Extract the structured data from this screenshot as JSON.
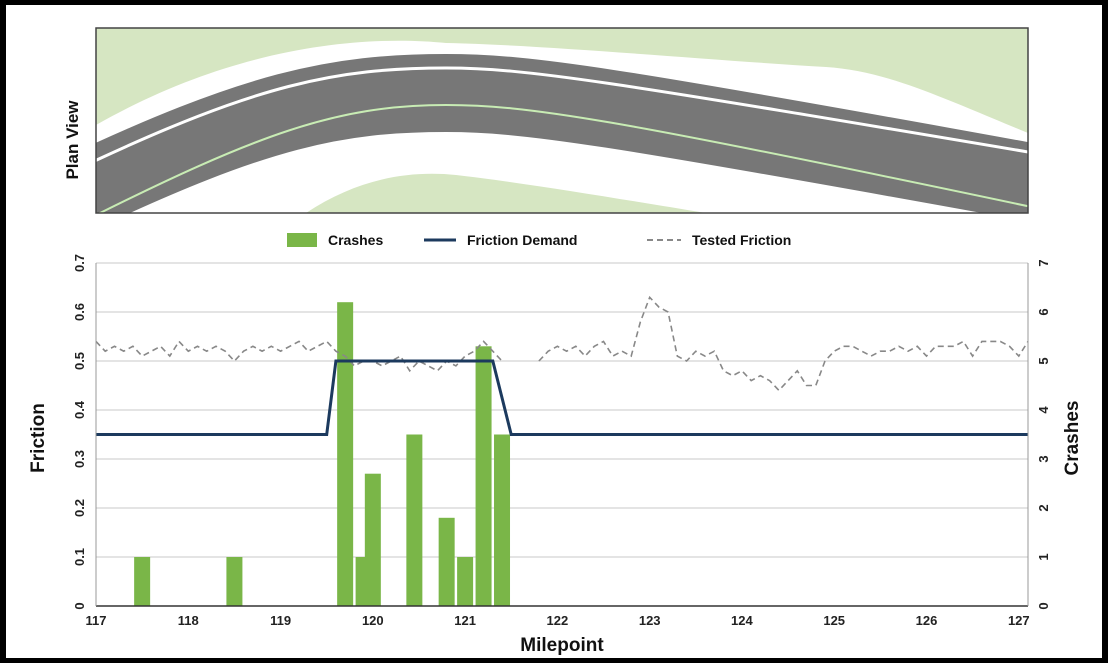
{
  "plan_view": {
    "label": "Plan View"
  },
  "colors": {
    "grass": "#d6e6c2",
    "road": "#777777",
    "bar": "#7ab648",
    "demand": "#1c3a5e",
    "tested": "#888888",
    "grid": "#c8c8c8"
  },
  "chart_data": {
    "type": "bar",
    "xlabel": "Milepoint",
    "ylabel_left": "Friction",
    "ylabel_right": "Crashes",
    "xlim": [
      117,
      127.1
    ],
    "xticks": [
      117,
      118,
      119,
      120,
      121,
      122,
      123,
      124,
      125,
      126,
      127
    ],
    "ylim_left": [
      0,
      0.7
    ],
    "yticks_left": [
      "0",
      "0.1",
      "0.2",
      "0.3",
      "0.4",
      "0.5",
      "0.6",
      "0.7"
    ],
    "ylim_right": [
      0,
      7
    ],
    "yticks_right": [
      "0",
      "1",
      "2",
      "3",
      "4",
      "5",
      "6",
      "7"
    ],
    "grid": true,
    "legend": [
      "Crashes",
      "Friction Demand",
      "Tested Friction"
    ],
    "legend_position": "top-center",
    "crashes": {
      "name": "Crashes",
      "x": [
        117.5,
        118.5,
        119.7,
        119.9,
        120.0,
        120.45,
        120.8,
        121.0,
        121.2,
        121.4
      ],
      "values": [
        1,
        1,
        6.2,
        1,
        2.7,
        3.5,
        1.8,
        1,
        5.3,
        3.5
      ]
    },
    "friction_demand": {
      "name": "Friction Demand",
      "x": [
        117,
        119.5,
        119.6,
        121.3,
        121.5,
        127.1
      ],
      "values": [
        0.35,
        0.35,
        0.5,
        0.5,
        0.35,
        0.35
      ]
    },
    "tested_friction": {
      "name": "Tested Friction",
      "segments": [
        {
          "x": [
            117.0,
            117.1,
            117.2,
            117.3,
            117.4,
            117.5,
            117.6,
            117.7,
            117.8,
            117.9,
            118.0,
            118.1,
            118.2,
            118.3,
            118.4,
            118.5,
            118.6,
            118.7,
            118.8,
            118.9,
            119.0,
            119.1,
            119.2,
            119.3,
            119.4,
            119.5,
            119.6,
            119.7,
            119.8,
            119.9,
            120.0,
            120.1,
            120.2,
            120.3,
            120.4,
            120.5,
            120.6,
            120.7,
            120.8,
            120.9,
            121.0,
            121.1,
            121.2,
            121.3,
            121.4
          ],
          "values": [
            0.54,
            0.52,
            0.53,
            0.52,
            0.53,
            0.51,
            0.52,
            0.53,
            0.51,
            0.54,
            0.52,
            0.53,
            0.52,
            0.53,
            0.52,
            0.5,
            0.52,
            0.53,
            0.52,
            0.53,
            0.52,
            0.53,
            0.54,
            0.52,
            0.53,
            0.54,
            0.52,
            0.51,
            0.49,
            0.5,
            0.5,
            0.49,
            0.5,
            0.51,
            0.48,
            0.5,
            0.49,
            0.48,
            0.5,
            0.49,
            0.51,
            0.52,
            0.54,
            0.52,
            0.5
          ]
        },
        {
          "x": [
            121.8,
            121.9,
            122.0,
            122.1,
            122.2,
            122.3,
            122.4,
            122.5,
            122.6,
            122.7,
            122.8,
            122.9,
            123.0,
            123.1,
            123.2,
            123.3,
            123.4,
            123.5,
            123.6,
            123.7,
            123.8,
            123.9,
            124.0,
            124.1,
            124.2,
            124.3,
            124.4,
            124.5,
            124.6,
            124.7,
            124.8,
            124.9,
            125.0,
            125.1,
            125.2,
            125.3,
            125.4,
            125.5,
            125.6,
            125.7,
            125.8,
            125.9,
            126.0,
            126.1,
            126.2,
            126.3,
            126.4,
            126.5,
            126.6,
            126.7,
            126.8,
            126.9,
            127.0,
            127.1
          ],
          "values": [
            0.5,
            0.52,
            0.53,
            0.52,
            0.53,
            0.51,
            0.53,
            0.54,
            0.51,
            0.52,
            0.51,
            0.58,
            0.63,
            0.61,
            0.6,
            0.51,
            0.5,
            0.52,
            0.51,
            0.52,
            0.48,
            0.47,
            0.48,
            0.46,
            0.47,
            0.46,
            0.44,
            0.46,
            0.48,
            0.45,
            0.45,
            0.5,
            0.52,
            0.53,
            0.53,
            0.52,
            0.51,
            0.52,
            0.52,
            0.53,
            0.52,
            0.53,
            0.51,
            0.53,
            0.53,
            0.53,
            0.54,
            0.51,
            0.54,
            0.54,
            0.54,
            0.53,
            0.51,
            0.54
          ]
        }
      ]
    }
  }
}
